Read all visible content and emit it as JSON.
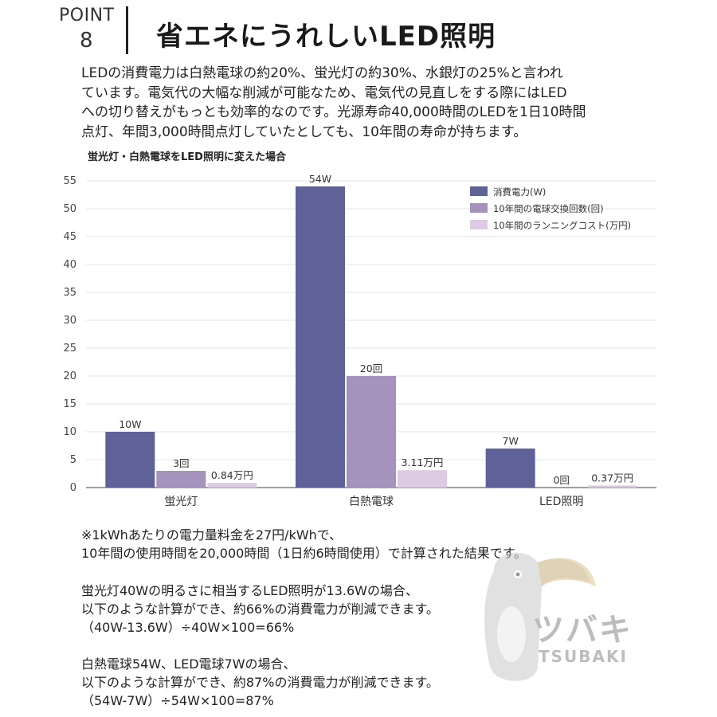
{
  "header": {
    "point_label": "POINT",
    "point_number": "8",
    "title": "省エネにうれしいLED照明"
  },
  "intro_lines": [
    "LEDの消費電力は白熱電球の約20%、蛍光灯の約30%、水銀灯の25%と言われ",
    "ています。電気代の大幅な削減が可能なため、電気代の見直しをする際にはLED",
    "への切り替えがもっとも効率的なのです。光源寿命40,000時間のLEDを1日10時間",
    "点灯、年間3,000時間点灯していたとしても、10年間の寿命が持ちます。"
  ],
  "chart_data": {
    "type": "bar",
    "title": "蛍光灯・白熱電球をLED照明に変えた場合",
    "categories": [
      "蛍光灯",
      "白熱電球",
      "LED照明"
    ],
    "series": [
      {
        "name": "消費電力(W)",
        "values": [
          10,
          54,
          7
        ],
        "labels": [
          "10W",
          "54W",
          "7W"
        ],
        "color": "#5f6199"
      },
      {
        "name": "10年間の電球交換回数(回)",
        "values": [
          3,
          20,
          0
        ],
        "labels": [
          "3回",
          "20回",
          "0回"
        ],
        "color": "#a592bd"
      },
      {
        "name": "10年間のランニングコスト(万円)",
        "values": [
          0.84,
          3.11,
          0.37
        ],
        "labels": [
          "0.84万円",
          "3.11万円",
          "0.37万円"
        ],
        "color": "#dccbe3"
      }
    ],
    "yticks": [
      0,
      5,
      10,
      15,
      20,
      25,
      30,
      35,
      40,
      45,
      50,
      55
    ],
    "ylim": [
      0,
      55
    ],
    "grid": true,
    "legend_position": "top-right",
    "grid_color": "#e4e4e4",
    "axis_color": "#666666"
  },
  "notes": [
    {
      "lines": [
        "※1kWhあたりの電力量料金を27円/kWhで、",
        "10年間の使用時間を20,000時間（1日約6時間使用）で計算された結果です。"
      ]
    },
    {
      "lines": [
        "蛍光灯40Wの明るさに相当するLED照明が13.6Wの場合、",
        "以下のような計算ができ、約66%の消費電力が削減できます。",
        "（40W-13.6W）÷40W×100=66%"
      ]
    },
    {
      "lines": [
        "白熱電球54W、LED電球7Wの場合、",
        "以下のような計算ができ、約87%の消費電力が削減できます。",
        "（54W-7W）÷54W×100=87%"
      ]
    }
  ],
  "logo": {
    "name": "ツバキ",
    "romaji": "TSUBAKI",
    "color": "#bdbdbd"
  }
}
